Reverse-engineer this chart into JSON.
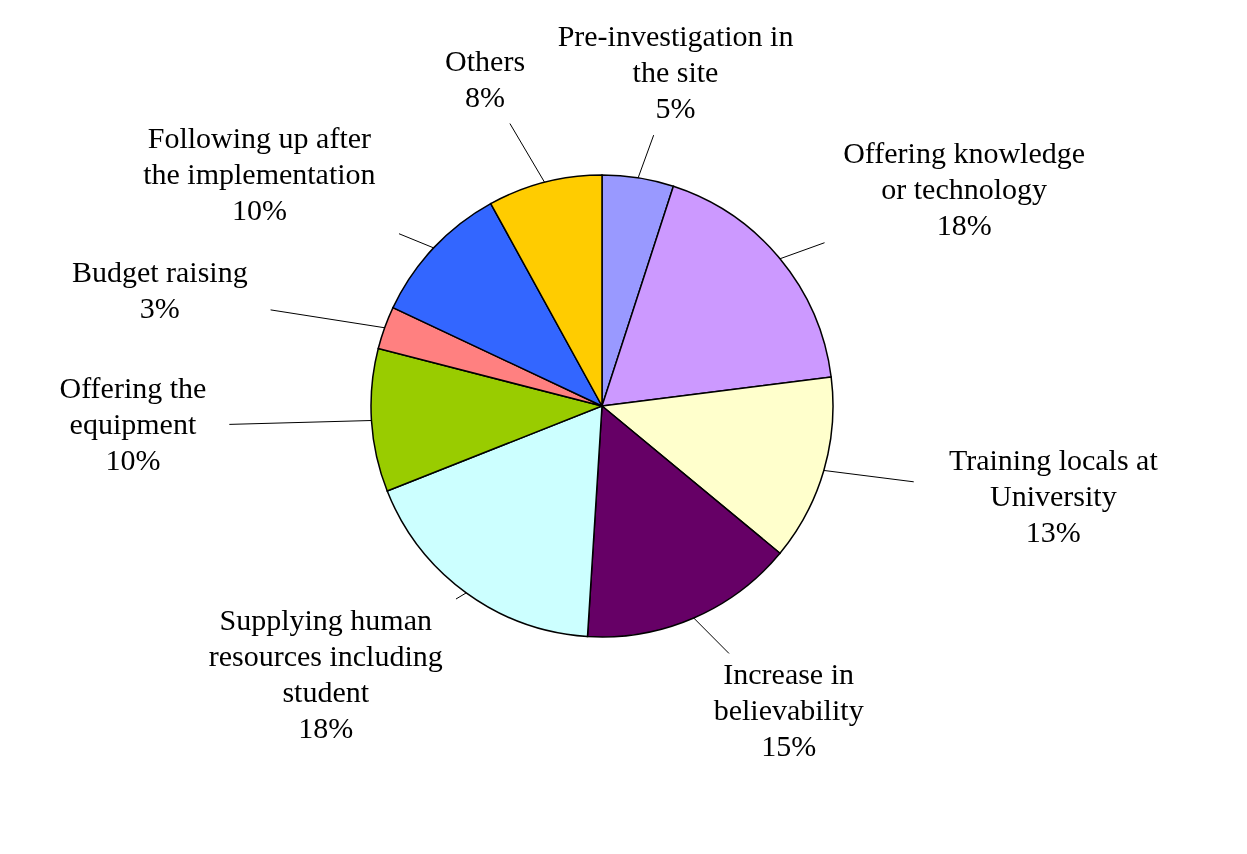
{
  "chart_data": {
    "type": "pie",
    "categories": [
      "Pre-investigation in the site",
      "Offering knowledge or technology",
      "Training locals at University",
      "Increase in believability",
      "Supplying human resources including student",
      "Offering the equipment",
      "Budget raising",
      "Following up after the implementation",
      "Others"
    ],
    "values": [
      5,
      18,
      13,
      15,
      18,
      10,
      3,
      10,
      8
    ],
    "colors": [
      "#9999ff",
      "#cc99ff",
      "#ffffcc",
      "#660066",
      "#ccffff",
      "#99cc00",
      "#ff8080",
      "#3366ff",
      "#ffcc00"
    ],
    "value_labels": [
      "5%",
      "18%",
      "13%",
      "15%",
      "18%",
      "10%",
      "3%",
      "10%",
      "8%"
    ]
  }
}
